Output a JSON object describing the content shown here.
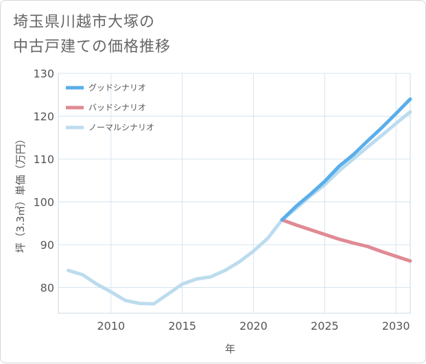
{
  "title_line1": "埼玉県川越市大塚の",
  "title_line2": "中古戸建ての価格推移",
  "chart_data": {
    "type": "line",
    "title": "埼玉県川越市大塚の中古戸建ての価格推移",
    "xlabel": "年",
    "ylabel": "坪（3.3㎡）単価（万円）",
    "xlim": [
      2006.3,
      2031
    ],
    "ylim": [
      74,
      130
    ],
    "xticks": [
      2010,
      2015,
      2020,
      2025,
      2030
    ],
    "yticks": [
      80,
      90,
      100,
      110,
      120,
      130
    ],
    "grid": true,
    "legend_position": "top-left",
    "series": [
      {
        "name": "グッドシナリオ",
        "color": "#5aaeea",
        "x": [
          2022,
          2023,
          2024,
          2025,
          2026,
          2027,
          2028,
          2029,
          2030,
          2031
        ],
        "values": [
          95.8,
          99.0,
          101.8,
          104.8,
          108.3,
          111.0,
          114.2,
          117.3,
          120.6,
          124.0
        ]
      },
      {
        "name": "バッドシナリオ",
        "color": "#e08a94",
        "x": [
          2022,
          2023,
          2024,
          2025,
          2026,
          2027,
          2028,
          2029,
          2030,
          2031
        ],
        "values": [
          95.8,
          94.6,
          93.5,
          92.4,
          91.3,
          90.4,
          89.6,
          88.4,
          87.3,
          86.2
        ]
      },
      {
        "name": "ノーマルシナリオ",
        "color": "#bcdcee",
        "x": [
          2007,
          2008,
          2009,
          2010,
          2011,
          2012,
          2013,
          2014,
          2015,
          2016,
          2017,
          2018,
          2019,
          2020,
          2021,
          2022,
          2023,
          2024,
          2025,
          2026,
          2027,
          2028,
          2029,
          2030,
          2031
        ],
        "values": [
          84.0,
          83.0,
          80.8,
          79.0,
          77.0,
          76.3,
          76.2,
          78.5,
          80.8,
          82.0,
          82.5,
          84.0,
          86.0,
          88.5,
          91.5,
          95.8,
          98.5,
          101.4,
          104.0,
          107.2,
          110.0,
          112.8,
          115.5,
          118.3,
          121.0
        ]
      }
    ]
  }
}
